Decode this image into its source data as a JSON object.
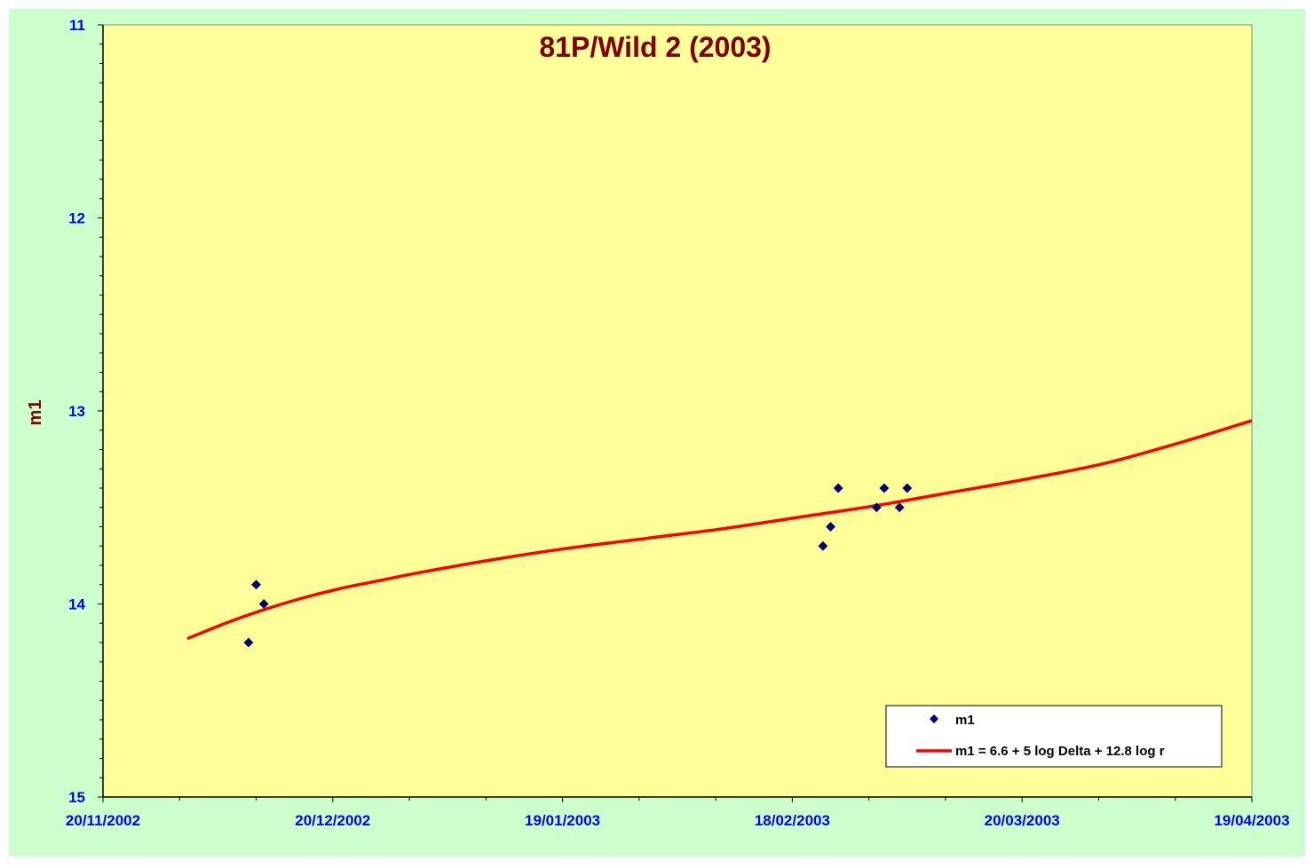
{
  "chart_data": {
    "type": "scatter",
    "title": "81P/Wild 2 (2003)",
    "xlabel": "",
    "ylabel": "m1",
    "x_tick_labels": [
      "20/11/2002",
      "20/12/2002",
      "19/01/2003",
      "18/02/2003",
      "20/03/2003",
      "19/04/2003"
    ],
    "x_tick_dates": [
      "2002-11-20",
      "2002-12-20",
      "2003-01-19",
      "2003-02-18",
      "2003-03-20",
      "2003-04-19"
    ],
    "xlim": [
      "2002-11-20",
      "2003-04-19"
    ],
    "y_tick_labels": [
      "11",
      "12",
      "13",
      "14",
      "15"
    ],
    "ylim": [
      11,
      15
    ],
    "y_inverted": true,
    "grid": false,
    "legend_position": "bottom-right",
    "colors": {
      "outer_background": "#ccffcc",
      "plot_background": "#ffff99",
      "title": "#800000",
      "ylabel": "#800000",
      "tick_labels": "#0000ff",
      "marker": "#000080",
      "fit_line": "#ff0000"
    },
    "series": [
      {
        "name": "m1",
        "kind": "scatter",
        "marker": "diamond",
        "points": [
          {
            "x": "2002-12-09",
            "y": 14.2
          },
          {
            "x": "2002-12-10",
            "y": 13.9
          },
          {
            "x": "2002-12-11",
            "y": 14.0
          },
          {
            "x": "2003-02-22",
            "y": 13.7
          },
          {
            "x": "2003-02-23",
            "y": 13.6
          },
          {
            "x": "2003-02-24",
            "y": 13.4
          },
          {
            "x": "2003-03-01",
            "y": 13.5
          },
          {
            "x": "2003-03-02",
            "y": 13.4
          },
          {
            "x": "2003-03-04",
            "y": 13.5
          },
          {
            "x": "2003-03-05",
            "y": 13.4
          }
        ]
      },
      {
        "name": "m1 = 6.6 + 5 log Delta + 12.8 log r",
        "kind": "line",
        "points": [
          {
            "x": "2002-12-01",
            "y": 14.18
          },
          {
            "x": "2002-12-06",
            "y": 14.1
          },
          {
            "x": "2002-12-11",
            "y": 14.03
          },
          {
            "x": "2002-12-16",
            "y": 13.97
          },
          {
            "x": "2002-12-21",
            "y": 13.92
          },
          {
            "x": "2002-12-26",
            "y": 13.88
          },
          {
            "x": "2002-12-31",
            "y": 13.84
          },
          {
            "x": "2003-01-10",
            "y": 13.77
          },
          {
            "x": "2003-01-20",
            "y": 13.71
          },
          {
            "x": "2003-01-30",
            "y": 13.66
          },
          {
            "x": "2003-02-09",
            "y": 13.61
          },
          {
            "x": "2003-02-19",
            "y": 13.55
          },
          {
            "x": "2003-03-01",
            "y": 13.49
          },
          {
            "x": "2003-03-11",
            "y": 13.42
          },
          {
            "x": "2003-03-21",
            "y": 13.35
          },
          {
            "x": "2003-03-31",
            "y": 13.27
          },
          {
            "x": "2003-04-10",
            "y": 13.16
          },
          {
            "x": "2003-04-19",
            "y": 13.05
          }
        ]
      }
    ]
  }
}
